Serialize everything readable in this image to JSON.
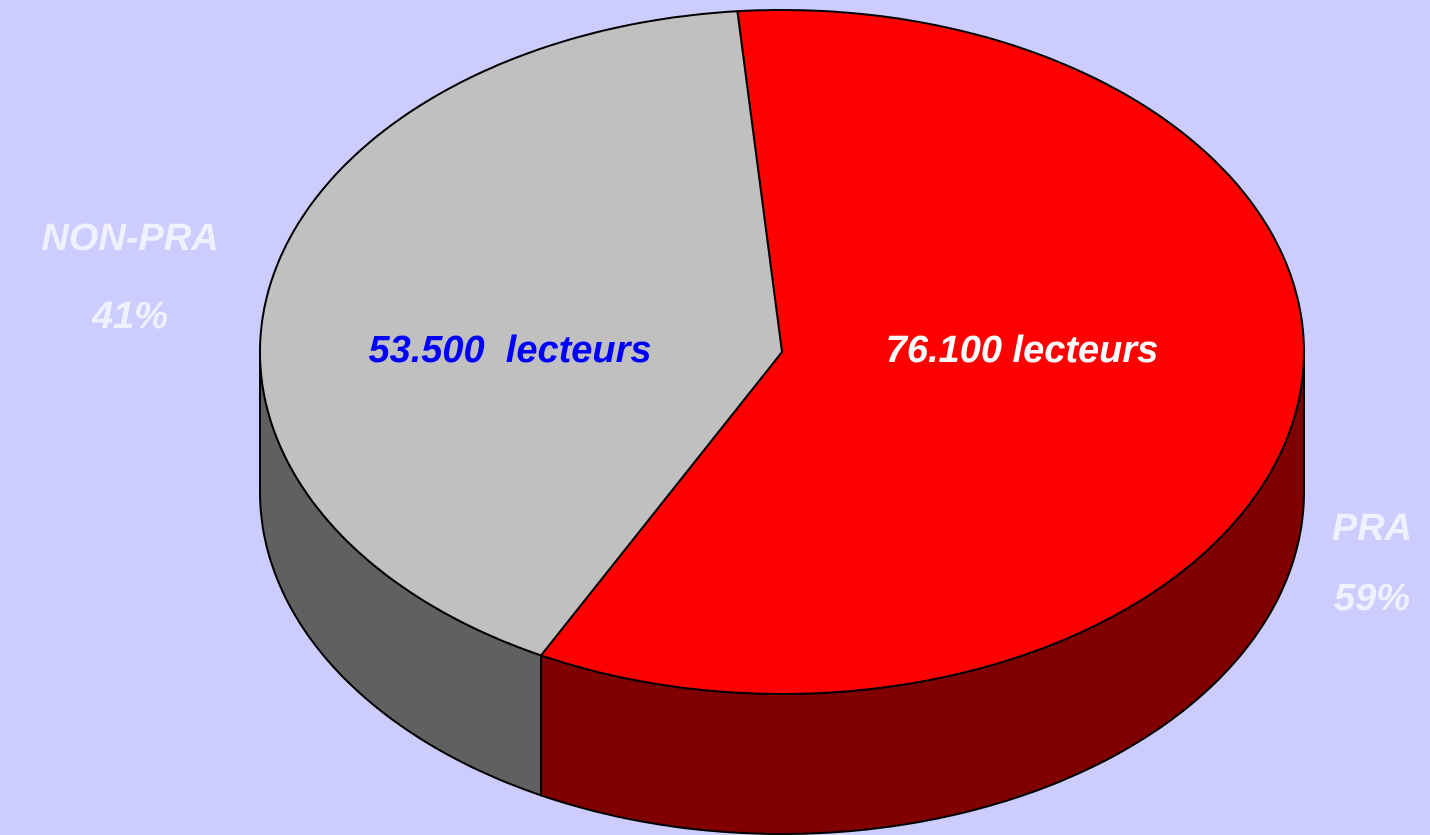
{
  "chart_data": {
    "type": "pie",
    "categories": [
      "PRA",
      "NON-PRA"
    ],
    "values": [
      59,
      41
    ],
    "value_labels": [
      "59%",
      "41%"
    ],
    "annotations": [
      "76.100 lecteurs",
      "53.500  lecteurs"
    ],
    "colors": [
      "#ff0000",
      "#c0c0c0"
    ],
    "side_colors": [
      "#800000",
      "#606060"
    ],
    "annotation_colors": [
      "#ffffff",
      "#0000ff"
    ]
  }
}
